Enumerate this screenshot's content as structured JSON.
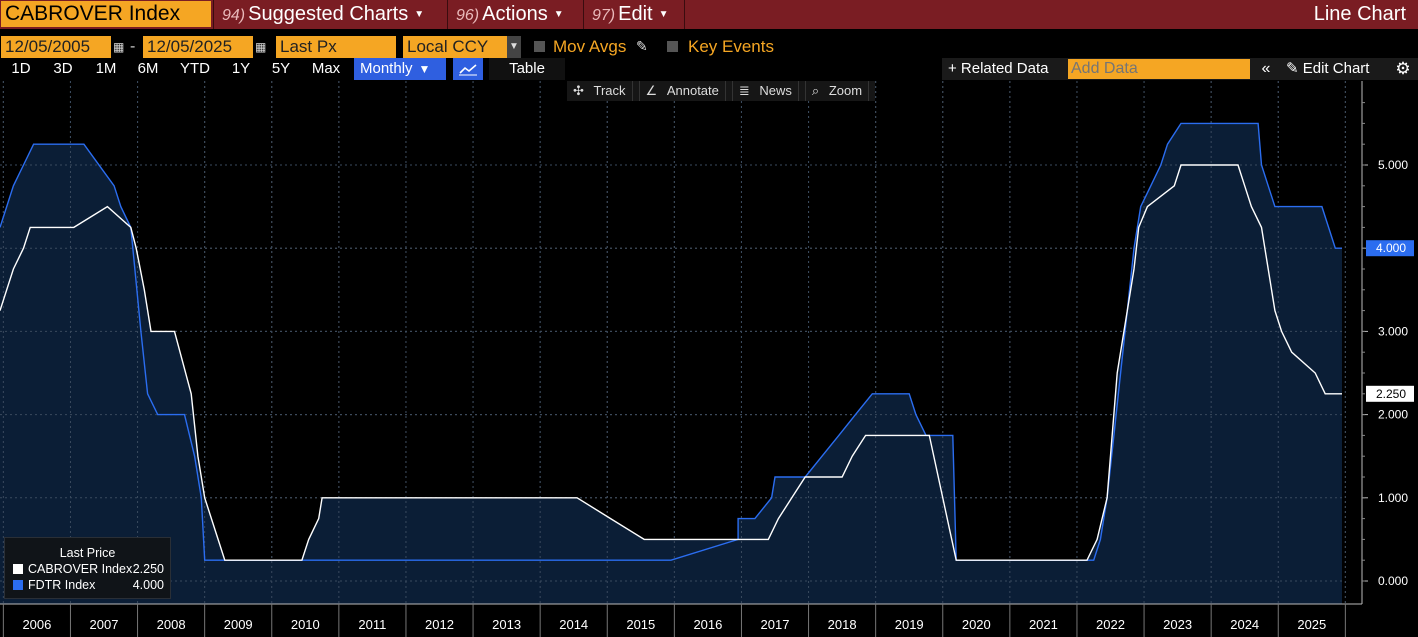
{
  "header": {
    "ticker": "CABROVER Index",
    "menu": [
      {
        "num": "94)",
        "label": "Suggested Charts"
      },
      {
        "num": "96)",
        "label": "Actions"
      },
      {
        "num": "97)",
        "label": "Edit"
      }
    ],
    "chart_type": "Line Chart"
  },
  "controls": {
    "start_date": "12/05/2005",
    "end_date": "12/05/2025",
    "date_sep": "-",
    "field": "Last Px",
    "currency": "Local CCY",
    "mov_avgs": "Mov Avgs",
    "key_events": "Key Events"
  },
  "ranges": [
    "1D",
    "3D",
    "1M",
    "6M",
    "YTD",
    "1Y",
    "5Y",
    "Max"
  ],
  "period": "Monthly",
  "table_label": "Table",
  "related_data": "+ Related Data",
  "add_data_placeholder": "Add Data",
  "edit_chart": "Edit Chart",
  "tools": [
    "Track",
    "Annotate",
    "News",
    "Zoom"
  ],
  "legend": {
    "title": "Last Price",
    "items": [
      {
        "name": "CABROVER Index",
        "value": "2.250"
      },
      {
        "name": "FDTR Index",
        "value": "4.000"
      }
    ]
  },
  "colors": {
    "white_series": "#ffffff",
    "blue_series": "#2b6df0",
    "area": "#0b1e36",
    "accent": "#f5a623",
    "header": "#7a1d23"
  },
  "chart_data": {
    "type": "line",
    "x_ticks": [
      "2006",
      "2007",
      "2008",
      "2009",
      "2010",
      "2011",
      "2012",
      "2013",
      "2014",
      "2015",
      "2016",
      "2017",
      "2018",
      "2019",
      "2020",
      "2021",
      "2022",
      "2023",
      "2024",
      "2025"
    ],
    "y_ticks": [
      "0.000",
      "1.000",
      "2.000",
      "3.000",
      "4.000",
      "5.000"
    ],
    "ylim": [
      -0.3,
      6.0
    ],
    "xlim": [
      2005.95,
      2025.95
    ],
    "last_labels": {
      "CABROVER Index": "2.250",
      "FDTR Index": "4.000"
    },
    "series": [
      {
        "name": "CABROVER Index",
        "points": [
          [
            2005.95,
            3.25
          ],
          [
            2006.05,
            3.5
          ],
          [
            2006.15,
            3.75
          ],
          [
            2006.3,
            4.0
          ],
          [
            2006.4,
            4.25
          ],
          [
            2007.05,
            4.25
          ],
          [
            2007.55,
            4.5
          ],
          [
            2007.9,
            4.25
          ],
          [
            2007.98,
            4.0
          ],
          [
            2008.1,
            3.5
          ],
          [
            2008.2,
            3.0
          ],
          [
            2008.55,
            3.0
          ],
          [
            2008.8,
            2.25
          ],
          [
            2008.9,
            1.5
          ],
          [
            2009.0,
            1.0
          ],
          [
            2009.2,
            0.5
          ],
          [
            2009.3,
            0.25
          ],
          [
            2010.45,
            0.25
          ],
          [
            2010.55,
            0.5
          ],
          [
            2010.7,
            0.75
          ],
          [
            2010.75,
            1.0
          ],
          [
            2014.55,
            1.0
          ],
          [
            2015.05,
            0.75
          ],
          [
            2015.55,
            0.5
          ],
          [
            2016.5,
            0.5
          ],
          [
            2017.4,
            0.5
          ],
          [
            2017.55,
            0.75
          ],
          [
            2017.75,
            1.0
          ],
          [
            2017.95,
            1.25
          ],
          [
            2018.5,
            1.25
          ],
          [
            2018.65,
            1.5
          ],
          [
            2018.85,
            1.75
          ],
          [
            2019.8,
            1.75
          ],
          [
            2020.2,
            0.25
          ],
          [
            2022.15,
            0.25
          ],
          [
            2022.3,
            0.5
          ],
          [
            2022.45,
            1.0
          ],
          [
            2022.6,
            2.5
          ],
          [
            2022.75,
            3.25
          ],
          [
            2022.85,
            3.75
          ],
          [
            2022.92,
            4.25
          ],
          [
            2023.05,
            4.5
          ],
          [
            2023.45,
            4.75
          ],
          [
            2023.55,
            5.0
          ],
          [
            2024.4,
            5.0
          ],
          [
            2024.5,
            4.75
          ],
          [
            2024.6,
            4.5
          ],
          [
            2024.75,
            4.25
          ],
          [
            2024.85,
            3.75
          ],
          [
            2024.95,
            3.25
          ],
          [
            2025.05,
            3.0
          ],
          [
            2025.2,
            2.75
          ],
          [
            2025.55,
            2.5
          ],
          [
            2025.7,
            2.25
          ],
          [
            2025.95,
            2.25
          ]
        ]
      },
      {
        "name": "FDTR Index",
        "points": [
          [
            2005.95,
            4.25
          ],
          [
            2006.05,
            4.5
          ],
          [
            2006.15,
            4.75
          ],
          [
            2006.3,
            5.0
          ],
          [
            2006.45,
            5.25
          ],
          [
            2007.2,
            5.25
          ],
          [
            2007.65,
            4.75
          ],
          [
            2007.75,
            4.5
          ],
          [
            2007.9,
            4.25
          ],
          [
            2008.05,
            3.0
          ],
          [
            2008.15,
            2.25
          ],
          [
            2008.3,
            2.0
          ],
          [
            2008.7,
            2.0
          ],
          [
            2008.85,
            1.5
          ],
          [
            2008.95,
            1.0
          ],
          [
            2009.0,
            0.25
          ],
          [
            2015.95,
            0.25
          ],
          [
            2016.95,
            0.5
          ],
          [
            2016.95,
            0.75
          ],
          [
            2017.2,
            0.75
          ],
          [
            2017.45,
            1.0
          ],
          [
            2017.5,
            1.25
          ],
          [
            2017.95,
            1.25
          ],
          [
            2018.2,
            1.5
          ],
          [
            2018.45,
            1.75
          ],
          [
            2018.7,
            2.0
          ],
          [
            2018.95,
            2.25
          ],
          [
            2019.5,
            2.25
          ],
          [
            2019.6,
            2.0
          ],
          [
            2019.75,
            1.75
          ],
          [
            2020.15,
            1.75
          ],
          [
            2020.2,
            0.25
          ],
          [
            2022.25,
            0.25
          ],
          [
            2022.35,
            0.5
          ],
          [
            2022.45,
            1.0
          ],
          [
            2022.55,
            1.75
          ],
          [
            2022.65,
            2.5
          ],
          [
            2022.75,
            3.25
          ],
          [
            2022.85,
            4.0
          ],
          [
            2022.95,
            4.5
          ],
          [
            2023.1,
            4.75
          ],
          [
            2023.25,
            5.0
          ],
          [
            2023.35,
            5.25
          ],
          [
            2023.55,
            5.5
          ],
          [
            2024.7,
            5.5
          ],
          [
            2024.75,
            5.0
          ],
          [
            2024.85,
            4.75
          ],
          [
            2024.95,
            4.5
          ],
          [
            2025.65,
            4.5
          ],
          [
            2025.75,
            4.25
          ],
          [
            2025.85,
            4.0
          ],
          [
            2025.95,
            4.0
          ]
        ]
      }
    ]
  }
}
